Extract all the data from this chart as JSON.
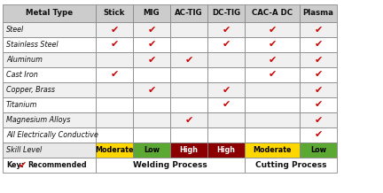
{
  "columns": [
    "Metal Type",
    "Stick",
    "MIG",
    "AC-TIG",
    "DC-TIG",
    "CAC-A DC",
    "Plasma"
  ],
  "rows": [
    "Steel",
    "Stainless Steel",
    "Aluminum",
    "Cast Iron",
    "Copper, Brass",
    "Titanium",
    "Magnesium Alloys",
    "All Electrically Conductive"
  ],
  "checks": [
    [
      1,
      1,
      0,
      1,
      1,
      1
    ],
    [
      1,
      1,
      0,
      1,
      1,
      1
    ],
    [
      0,
      1,
      1,
      0,
      1,
      1
    ],
    [
      1,
      0,
      0,
      0,
      1,
      1
    ],
    [
      0,
      1,
      0,
      1,
      0,
      1
    ],
    [
      0,
      0,
      0,
      1,
      0,
      1
    ],
    [
      0,
      0,
      1,
      0,
      0,
      1
    ],
    [
      0,
      0,
      0,
      0,
      0,
      1
    ]
  ],
  "skill_labels": [
    "Moderate",
    "Low",
    "High",
    "High",
    "Moderate",
    "Low"
  ],
  "skill_colors": [
    "#FFD700",
    "#5BA833",
    "#8B0000",
    "#8B0000",
    "#FFD700",
    "#5BA833"
  ],
  "skill_text_colors": [
    "#000000",
    "#000000",
    "#FFFFFF",
    "#FFFFFF",
    "#000000",
    "#000000"
  ],
  "check_color": "#CC0000",
  "border_color": "#888888",
  "header_bg": "#CCCCCC",
  "row_bg_even": "#F0F0F0",
  "row_bg_odd": "#FFFFFF",
  "skill_row_bg": "#E8E8E8",
  "footer_bg": "#FFFFFF"
}
